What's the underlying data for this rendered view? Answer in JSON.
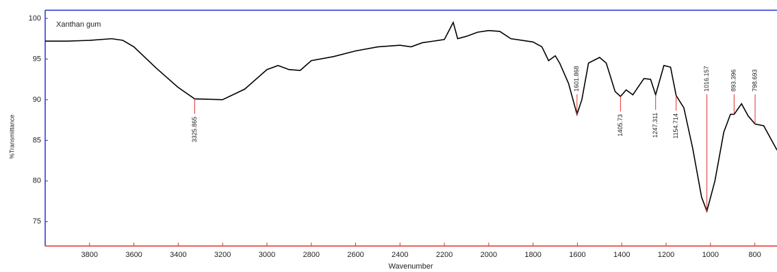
{
  "chart_data": {
    "type": "line",
    "title": "Xanthan gum",
    "xlabel": "Wavenumber",
    "ylabel": "%Transmittance",
    "xlim": [
      4000,
      700
    ],
    "ylim": [
      72,
      101
    ],
    "xticks": [
      3800,
      3600,
      3400,
      3200,
      3000,
      2800,
      2600,
      2400,
      2200,
      2000,
      1800,
      1600,
      1400,
      1200,
      1000,
      800
    ],
    "yticks": [
      75,
      80,
      85,
      90,
      95,
      100
    ],
    "x": [
      4000,
      3900,
      3800,
      3700,
      3650,
      3600,
      3500,
      3400,
      3325.865,
      3200,
      3100,
      3000,
      2950,
      2900,
      2850,
      2800,
      2700,
      2600,
      2500,
      2400,
      2350,
      2300,
      2200,
      2160,
      2140,
      2100,
      2050,
      2000,
      1950,
      1900,
      1800,
      1760,
      1730,
      1700,
      1680,
      1640,
      1601.868,
      1580,
      1550,
      1500,
      1470,
      1430,
      1405.73,
      1380,
      1350,
      1300,
      1270,
      1247.311,
      1210,
      1180,
      1154.714,
      1120,
      1080,
      1040,
      1016.157,
      980,
      940,
      910,
      893.396,
      860,
      830,
      798.693,
      760,
      700
    ],
    "series": [
      {
        "name": "Xanthan gum",
        "color": "#000000",
        "values": [
          97.2,
          97.2,
          97.3,
          97.5,
          97.3,
          96.5,
          93.9,
          91.5,
          90.1,
          90.0,
          91.3,
          93.7,
          94.2,
          93.7,
          93.6,
          94.8,
          95.3,
          96.0,
          96.5,
          96.7,
          96.5,
          97.0,
          97.4,
          99.5,
          97.5,
          97.8,
          98.3,
          98.5,
          98.4,
          97.5,
          97.1,
          96.5,
          94.8,
          95.4,
          94.5,
          92.0,
          88.2,
          90.0,
          94.5,
          95.2,
          94.5,
          91.0,
          90.4,
          91.2,
          90.6,
          92.6,
          92.5,
          90.6,
          94.2,
          94.0,
          90.5,
          89.0,
          84.0,
          78.0,
          76.3,
          80.0,
          86.0,
          88.2,
          88.2,
          89.5,
          88.0,
          87.0,
          86.8,
          83.8
        ]
      }
    ],
    "peaks": [
      3325.865,
      1601.868,
      1405.73,
      1247.311,
      1154.714,
      1016.157,
      893.396,
      798.693
    ],
    "peak_color": "#e0302a",
    "frame_color": "#2233cc"
  }
}
